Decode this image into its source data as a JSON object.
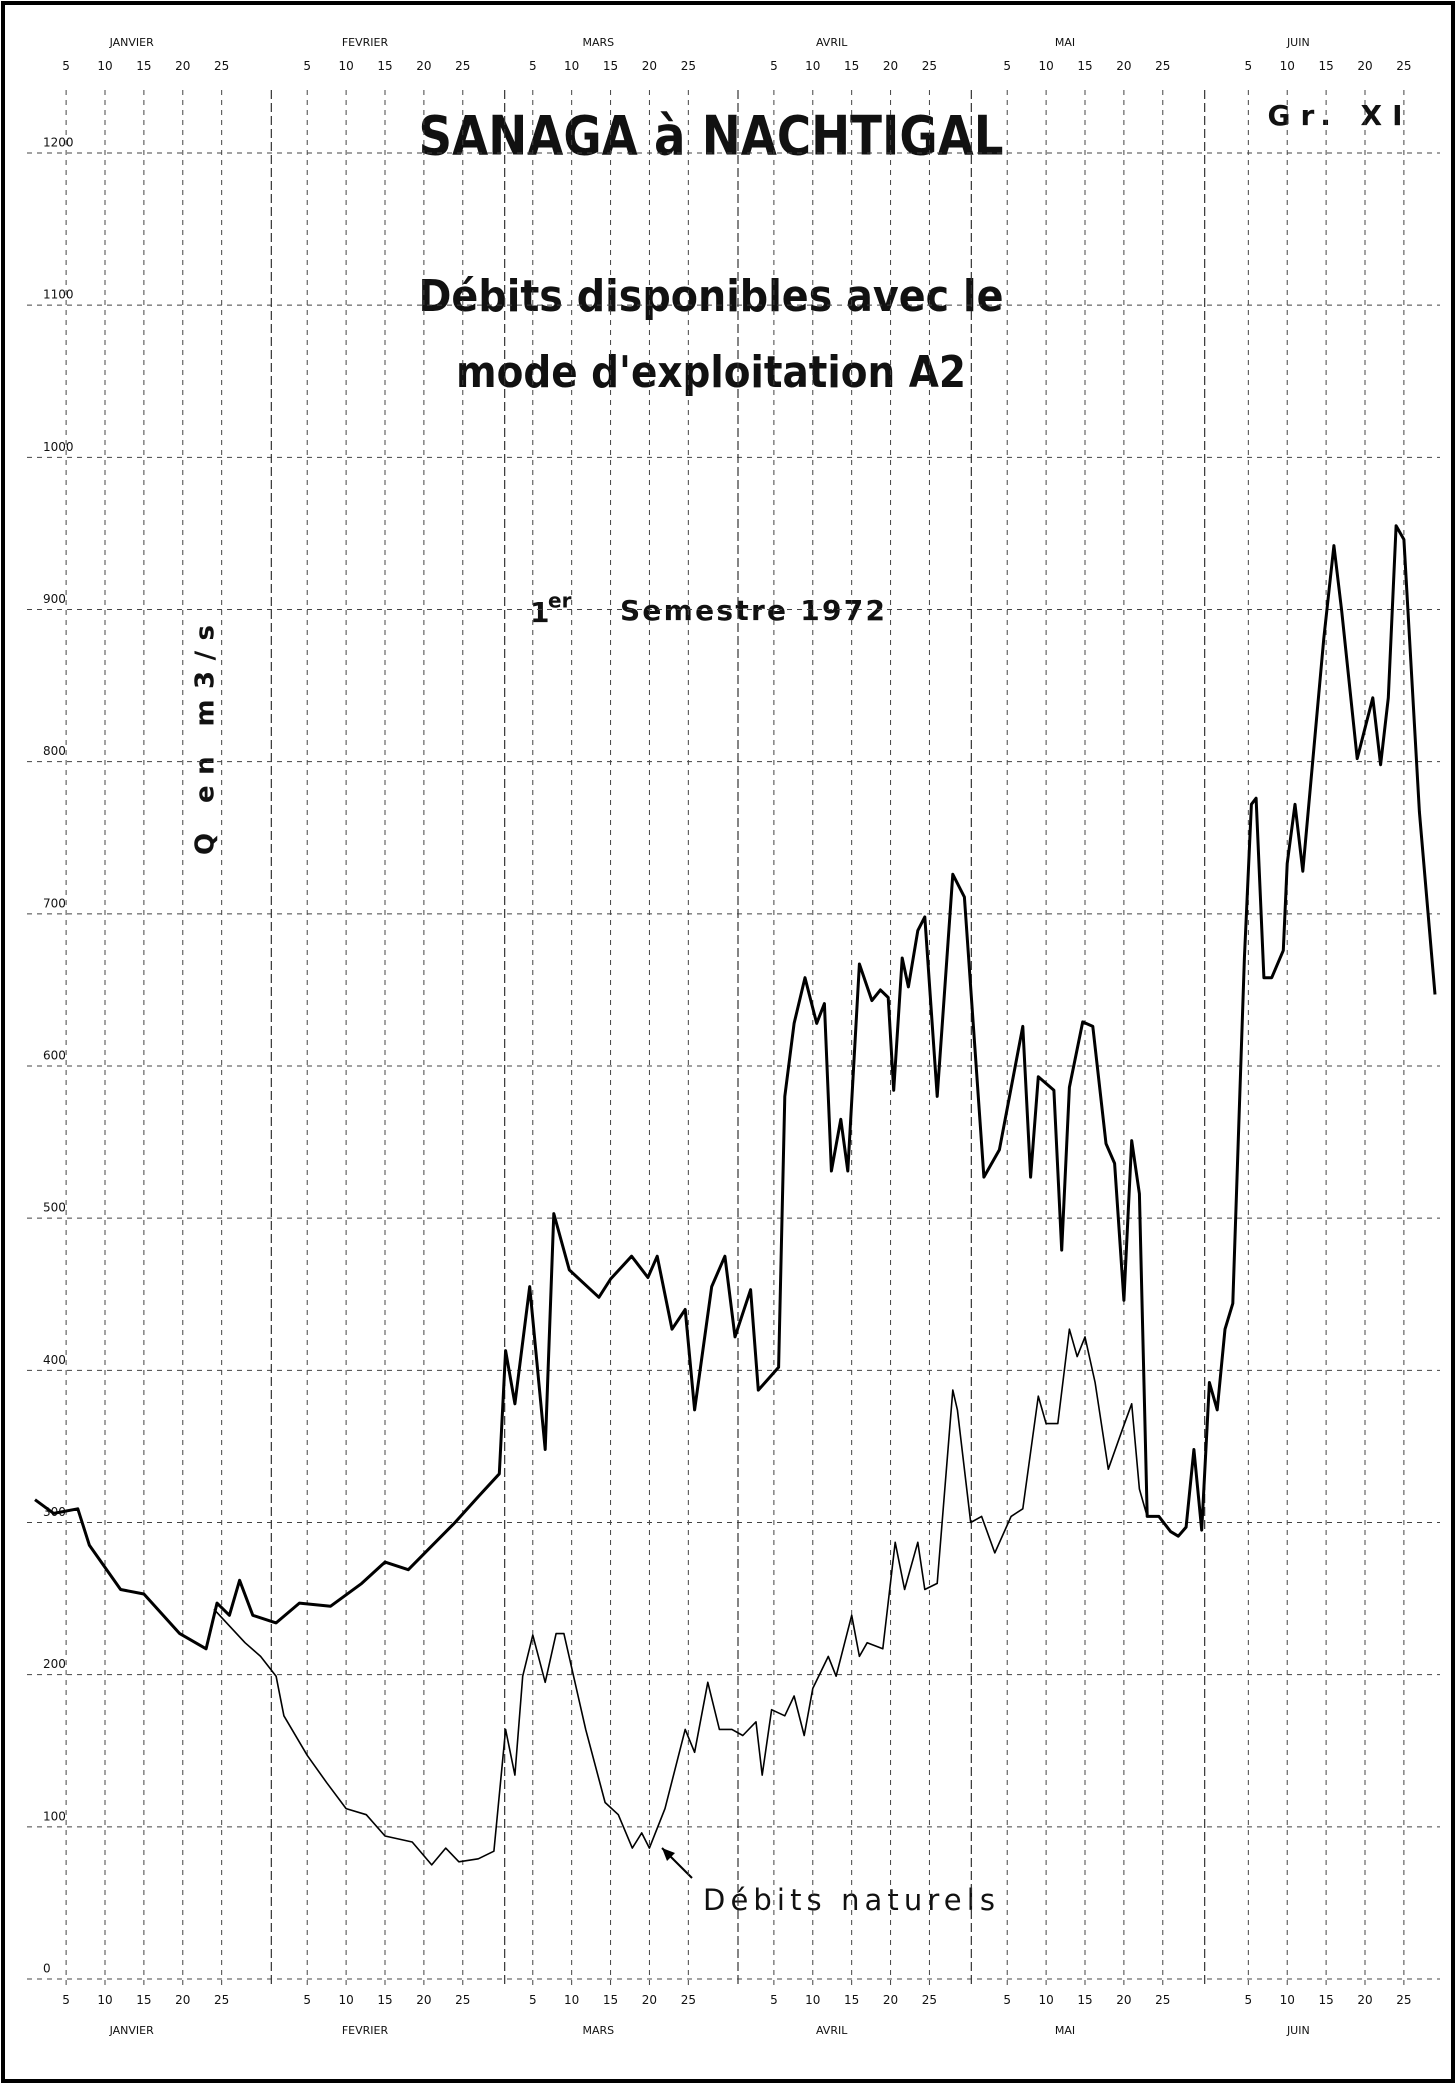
{
  "chart_data": {
    "type": "line",
    "title": "SANAGA à NACHTIGAL",
    "code": "Gr. XI",
    "subtitle": [
      "Débits disponibles avec le",
      "mode d'exploitation A2"
    ],
    "period": {
      "ordinal": "1",
      "suffix": "er",
      "text": "Semestre 1972"
    },
    "y_label": "Q en m3/s",
    "annotation": "Débits naturels",
    "months": [
      "JANVIER",
      "FEVRIER",
      "MARS",
      "AVRIL",
      "MAI",
      "JUIN"
    ],
    "xlim": [
      1,
      181
    ],
    "xticks": [
      {
        "value": 5,
        "label": "5"
      },
      {
        "value": 10,
        "label": "10"
      },
      {
        "value": 15,
        "label": "15"
      },
      {
        "value": 20,
        "label": "20"
      },
      {
        "value": 25,
        "label": "25"
      },
      {
        "value": 36,
        "label": "5"
      },
      {
        "value": 41,
        "label": "10"
      },
      {
        "value": 46,
        "label": "15"
      },
      {
        "value": 51,
        "label": "20"
      },
      {
        "value": 56,
        "label": "25"
      },
      {
        "value": 65,
        "label": "5"
      },
      {
        "value": 70,
        "label": "10"
      },
      {
        "value": 75,
        "label": "15"
      },
      {
        "value": 80,
        "label": "20"
      },
      {
        "value": 85,
        "label": "25"
      },
      {
        "value": 96,
        "label": "5"
      },
      {
        "value": 101,
        "label": "10"
      },
      {
        "value": 106,
        "label": "15"
      },
      {
        "value": 111,
        "label": "20"
      },
      {
        "value": 116,
        "label": "25"
      },
      {
        "value": 126,
        "label": "5"
      },
      {
        "value": 131,
        "label": "10"
      },
      {
        "value": 136,
        "label": "15"
      },
      {
        "value": 141,
        "label": "20"
      },
      {
        "value": 146,
        "label": "25"
      },
      {
        "value": 157,
        "label": "5"
      },
      {
        "value": 162,
        "label": "10"
      },
      {
        "value": 167,
        "label": "15"
      },
      {
        "value": 172,
        "label": "20"
      },
      {
        "value": 177,
        "label": "25"
      }
    ],
    "ylim": [
      0,
      1200
    ],
    "yticks": [
      0,
      100,
      200,
      300,
      400,
      500,
      600,
      700,
      800,
      900,
      1000,
      1100,
      1200
    ],
    "grid": true,
    "series": [
      {
        "name": "Débits disponibles",
        "color": "#000000",
        "width": 3,
        "x": [
          1,
          3.4,
          6.5,
          8,
          12,
          15,
          19.6,
          23,
          24.4,
          26,
          27.3,
          29,
          32,
          35,
          39,
          43,
          46,
          49,
          51.5,
          55,
          58,
          60.7,
          61.5,
          62.7,
          64.6,
          66.6,
          67.7,
          69.7,
          73.5,
          75,
          77.7,
          79.8,
          81,
          82.9,
          84.6,
          85.8,
          88,
          89.7,
          91,
          93,
          94,
          96.6,
          97.4,
          98.6,
          100,
          101.5,
          102.5,
          103.4,
          104.6,
          105.5,
          107,
          108.6,
          109.7,
          110.7,
          111.4,
          112.5,
          113.3,
          114.5,
          115.4,
          117,
          119,
          120.5,
          123,
          125,
          128,
          129,
          130,
          132,
          133,
          134,
          135.7,
          137,
          138.7,
          139.8,
          141,
          142,
          143,
          144,
          145.5,
          147,
          148,
          149,
          150,
          151,
          152,
          153,
          154,
          155,
          156.5,
          157.4,
          158,
          159,
          160,
          161.5,
          162,
          163,
          164,
          166.7,
          168,
          169,
          171,
          173,
          174,
          175,
          176,
          177,
          179,
          181
        ],
        "values": [
          315,
          306,
          309,
          285,
          256,
          253,
          227,
          217,
          247,
          239,
          262,
          239,
          234,
          247,
          245,
          260,
          274,
          269,
          282,
          300,
          317,
          332,
          413,
          378,
          455,
          348,
          503,
          466,
          448,
          460,
          475,
          461,
          475,
          427,
          440,
          374,
          455,
          475,
          422,
          453,
          387,
          402,
          580,
          628,
          658,
          628,
          641,
          531,
          565,
          531,
          667,
          643,
          650,
          645,
          584,
          671,
          652,
          689,
          698,
          580,
          726,
          711,
          527,
          545,
          626,
          527,
          593,
          584,
          479,
          586,
          629,
          626,
          549,
          536,
          446,
          551,
          516,
          304,
          304,
          294,
          291,
          297,
          348,
          295,
          392,
          374,
          427,
          444,
          671,
          772,
          776,
          658,
          658,
          676,
          733,
          772,
          728,
          881,
          942,
          899,
          802,
          842,
          798,
          842,
          955,
          946,
          767,
          647
        ]
      },
      {
        "name": "Débits naturels",
        "color": "#000000",
        "width": 1.6,
        "x": [
          24,
          28,
          30,
          32,
          33,
          36,
          38.5,
          41,
          43.6,
          46,
          49.5,
          52,
          53.8,
          55.5,
          58,
          60,
          61.5,
          62.7,
          63.7,
          65,
          66.6,
          68,
          69,
          71.8,
          74.3,
          76,
          77.8,
          79,
          80,
          82,
          84.6,
          85.8,
          87.5,
          89,
          90.6,
          92,
          93.7,
          94.5,
          95.7,
          97.4,
          98.6,
          99.9,
          101,
          103,
          104,
          106,
          107,
          108,
          110,
          111.6,
          112.8,
          114.5,
          115.4,
          117,
          119,
          119.6,
          121.3,
          122.7,
          124.4,
          126.5,
          128,
          130,
          131,
          132.5,
          134,
          135,
          136,
          137.3,
          139,
          140.8,
          142,
          143,
          144
        ],
        "values": [
          243,
          221,
          212,
          199,
          173,
          147,
          129,
          112,
          108,
          94,
          90,
          75,
          86,
          77,
          79,
          84,
          164,
          134,
          199,
          226,
          195,
          227,
          227,
          164,
          116,
          108,
          86,
          96,
          86,
          112,
          164,
          149,
          195,
          164,
          164,
          160,
          169,
          134,
          177,
          173,
          186,
          160,
          191,
          212,
          199,
          239,
          212,
          221,
          217,
          287,
          256,
          287,
          256,
          260,
          387,
          374,
          300,
          304,
          280,
          304,
          309,
          383,
          365,
          365,
          427,
          409,
          422,
          392,
          335,
          361,
          378,
          322,
          304
        ]
      }
    ]
  }
}
